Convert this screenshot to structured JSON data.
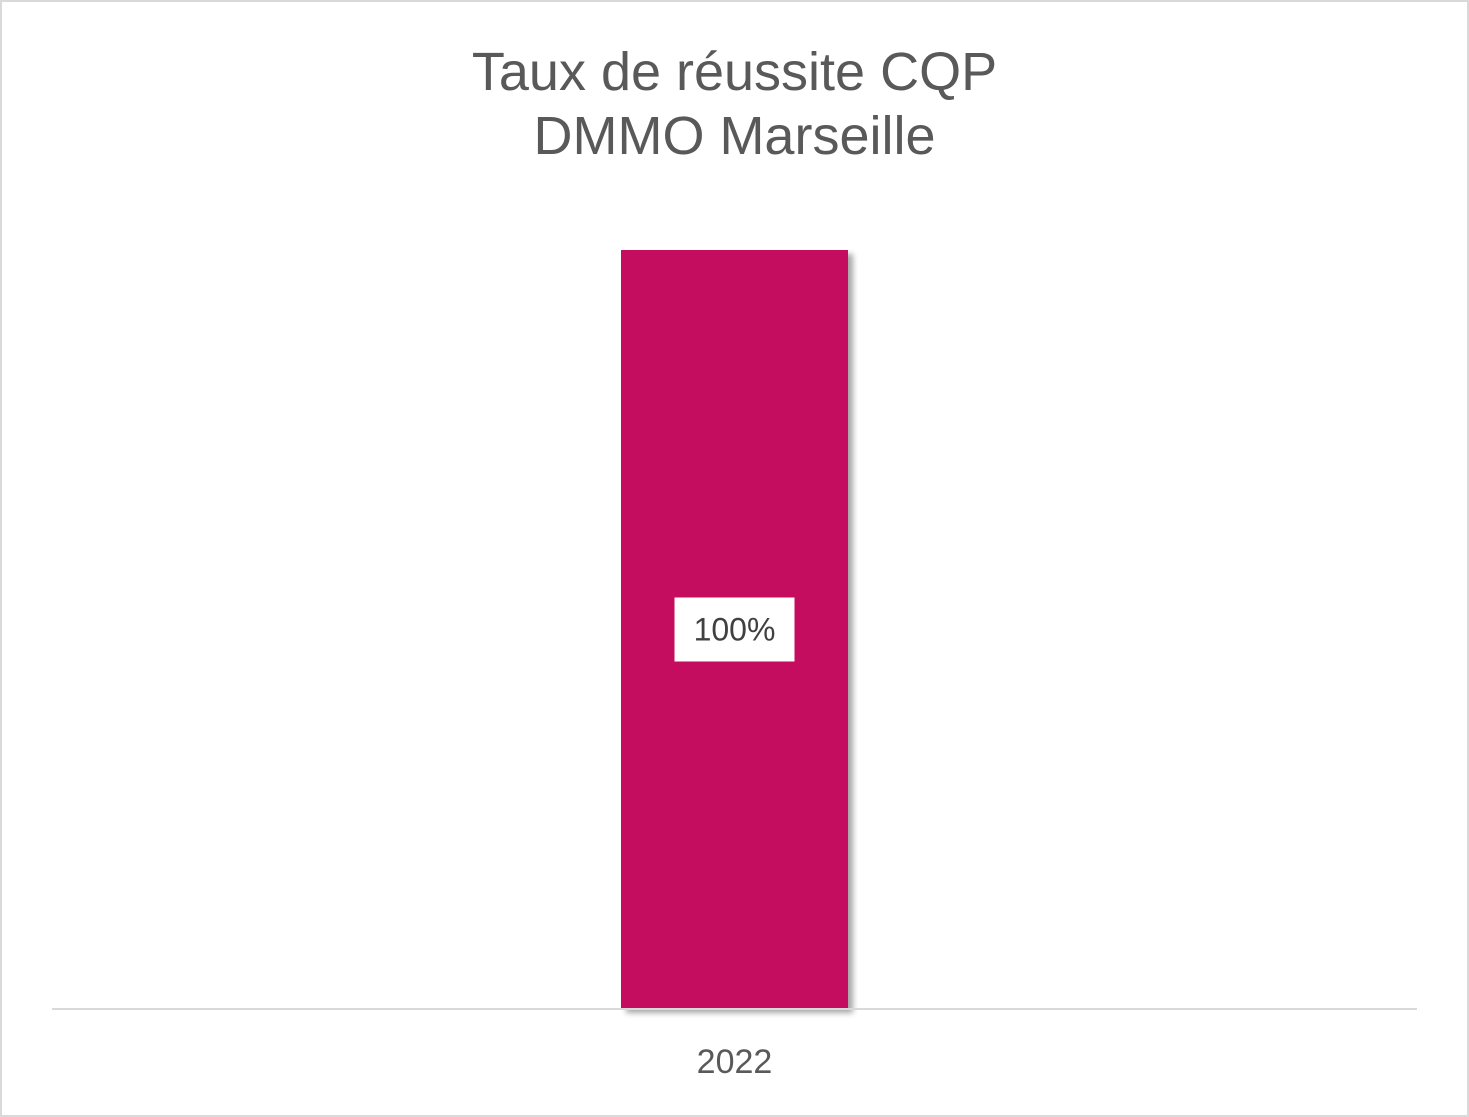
{
  "chart_data": {
    "type": "bar",
    "title_lines": [
      "Taux de réussite CQP",
      "DMMO Marseille"
    ],
    "categories": [
      "2022"
    ],
    "values": [
      100
    ],
    "value_unit": "%",
    "data_labels": [
      "100%"
    ],
    "ylim": [
      0,
      100
    ],
    "grid": false,
    "legend": "none",
    "bar_color": "#C50A5E",
    "axis_color": "#d9d9d9"
  }
}
